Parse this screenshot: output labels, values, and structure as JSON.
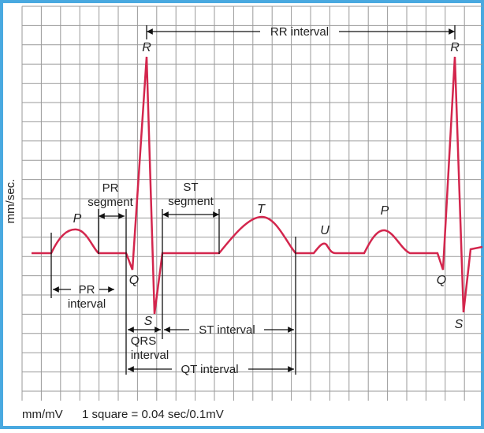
{
  "diagram": {
    "axis_label": "mm/sec.",
    "footer": [
      "mm/mV",
      "1 square = 0.04 sec/0.1mV"
    ],
    "waves": {
      "p1": "P",
      "q1": "Q",
      "r1": "R",
      "s1": "S",
      "t": "T",
      "u": "U",
      "p2": "P",
      "q2": "Q",
      "r2": "R",
      "s2": "S"
    },
    "intervals": {
      "rr": "RR interval",
      "pr_segment": [
        "PR",
        "segment"
      ],
      "st_segment": [
        "ST",
        "segment"
      ],
      "pr_interval": [
        "PR",
        "interval"
      ],
      "qrs_interval": [
        "QRS",
        "interval"
      ],
      "st_interval": "ST interval",
      "qt_interval": "QT interval"
    }
  }
}
